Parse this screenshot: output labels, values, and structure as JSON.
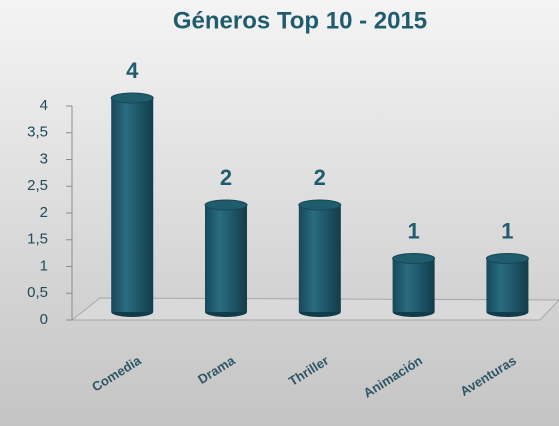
{
  "chart_data": {
    "type": "bar",
    "title": "Géneros Top 10 - 2015",
    "categories": [
      "Comedia",
      "Drama",
      "Thriller",
      "Animación",
      "Aventuras"
    ],
    "values": [
      4,
      2,
      2,
      1,
      1
    ],
    "color": "#1f5d6e",
    "ylim": [
      0,
      4
    ],
    "yticks": [
      0,
      {
        "value": 0.5,
        "label": "0,5"
      },
      1,
      {
        "value": 1.5,
        "label": "1,5"
      },
      2,
      {
        "value": 2.5,
        "label": "2,5"
      },
      3,
      {
        "value": 3.5,
        "label": "3,5"
      },
      4
    ],
    "grid": false
  }
}
